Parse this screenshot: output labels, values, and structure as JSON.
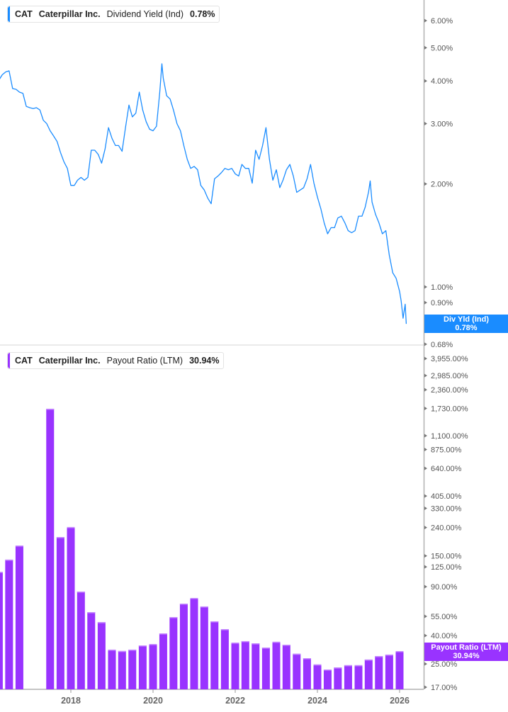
{
  "panels": {
    "top": {
      "ticker": "CAT",
      "company": "Caterpillar Inc.",
      "metric": "Dividend Yield (Ind)",
      "value": "0.78%",
      "tag_label": "Div Yld (Ind)",
      "tag_value": "0.78%",
      "color": "#1a8cff"
    },
    "bottom": {
      "ticker": "CAT",
      "company": "Caterpillar Inc.",
      "metric": "Payout Ratio (LTM)",
      "value": "30.94%",
      "tag_label": "Payout Ratio (LTM)",
      "tag_value": "30.94%",
      "color": "#9933ff"
    }
  },
  "chart_data": [
    {
      "type": "line",
      "series": [
        {
          "name": "Dividend Yield (Ind)"
        }
      ],
      "scale": "log",
      "yticks": [
        "6.00%",
        "5.00%",
        "4.00%",
        "3.00%",
        "2.00%",
        "1.00%",
        "0.90%",
        "0.79%",
        "0.68%"
      ],
      "ytick_values": [
        6,
        5,
        4,
        3,
        2,
        1,
        0.9,
        0.79,
        0.68
      ],
      "ylim": [
        0.67,
        7.0
      ],
      "points": [
        [
          "2016-04-01",
          4.02
        ],
        [
          "2016-05-01",
          4.17
        ],
        [
          "2016-06-01",
          4.25
        ],
        [
          "2016-07-01",
          4.28
        ],
        [
          "2016-08-01",
          3.8
        ],
        [
          "2016-09-01",
          3.78
        ],
        [
          "2016-10-01",
          3.71
        ],
        [
          "2016-11-01",
          3.68
        ],
        [
          "2016-12-01",
          3.37
        ],
        [
          "2017-01-01",
          3.34
        ],
        [
          "2017-02-01",
          3.32
        ],
        [
          "2017-03-01",
          3.34
        ],
        [
          "2017-04-01",
          3.29
        ],
        [
          "2017-05-01",
          3.07
        ],
        [
          "2017-06-01",
          3.0
        ],
        [
          "2017-07-01",
          2.86
        ],
        [
          "2017-08-01",
          2.76
        ],
        [
          "2017-09-01",
          2.66
        ],
        [
          "2017-10-01",
          2.47
        ],
        [
          "2017-11-01",
          2.32
        ],
        [
          "2017-12-01",
          2.22
        ],
        [
          "2018-01-01",
          1.98
        ],
        [
          "2018-02-01",
          1.98
        ],
        [
          "2018-03-01",
          2.05
        ],
        [
          "2018-04-01",
          2.09
        ],
        [
          "2018-05-01",
          2.05
        ],
        [
          "2018-06-01",
          2.09
        ],
        [
          "2018-07-01",
          2.51
        ],
        [
          "2018-08-01",
          2.51
        ],
        [
          "2018-09-01",
          2.44
        ],
        [
          "2018-10-01",
          2.3
        ],
        [
          "2018-11-01",
          2.53
        ],
        [
          "2018-12-01",
          2.92
        ],
        [
          "2019-01-01",
          2.72
        ],
        [
          "2019-02-01",
          2.59
        ],
        [
          "2019-03-01",
          2.59
        ],
        [
          "2019-04-01",
          2.49
        ],
        [
          "2019-05-01",
          2.92
        ],
        [
          "2019-06-01",
          3.4
        ],
        [
          "2019-07-01",
          3.14
        ],
        [
          "2019-08-01",
          3.22
        ],
        [
          "2019-09-01",
          3.71
        ],
        [
          "2019-10-01",
          3.29
        ],
        [
          "2019-11-01",
          3.04
        ],
        [
          "2019-12-01",
          2.89
        ],
        [
          "2020-01-01",
          2.86
        ],
        [
          "2020-02-01",
          2.95
        ],
        [
          "2020-03-01",
          3.71
        ],
        [
          "2020-03-20",
          4.49
        ],
        [
          "2020-04-01",
          4.08
        ],
        [
          "2020-05-01",
          3.62
        ],
        [
          "2020-06-01",
          3.54
        ],
        [
          "2020-07-01",
          3.29
        ],
        [
          "2020-08-01",
          3.0
        ],
        [
          "2020-09-01",
          2.86
        ],
        [
          "2020-10-01",
          2.59
        ],
        [
          "2020-11-01",
          2.36
        ],
        [
          "2020-12-01",
          2.22
        ],
        [
          "2021-01-01",
          2.25
        ],
        [
          "2021-02-01",
          2.2
        ],
        [
          "2021-03-01",
          1.98
        ],
        [
          "2021-04-01",
          1.92
        ],
        [
          "2021-05-01",
          1.82
        ],
        [
          "2021-06-01",
          1.75
        ],
        [
          "2021-07-01",
          2.07
        ],
        [
          "2021-08-01",
          2.11
        ],
        [
          "2021-09-01",
          2.16
        ],
        [
          "2021-10-01",
          2.22
        ],
        [
          "2021-11-01",
          2.2
        ],
        [
          "2021-12-01",
          2.22
        ],
        [
          "2022-01-01",
          2.14
        ],
        [
          "2022-02-01",
          2.11
        ],
        [
          "2022-03-01",
          2.28
        ],
        [
          "2022-04-01",
          2.22
        ],
        [
          "2022-05-01",
          2.22
        ],
        [
          "2022-06-01",
          2.01
        ],
        [
          "2022-07-01",
          2.51
        ],
        [
          "2022-08-01",
          2.36
        ],
        [
          "2022-09-01",
          2.59
        ],
        [
          "2022-10-01",
          2.92
        ],
        [
          "2022-11-01",
          2.36
        ],
        [
          "2022-12-01",
          2.05
        ],
        [
          "2023-01-01",
          2.2
        ],
        [
          "2023-02-01",
          1.95
        ],
        [
          "2023-03-01",
          2.05
        ],
        [
          "2023-04-01",
          2.2
        ],
        [
          "2023-05-01",
          2.28
        ],
        [
          "2023-06-01",
          2.11
        ],
        [
          "2023-07-01",
          1.89
        ],
        [
          "2023-08-01",
          1.92
        ],
        [
          "2023-09-01",
          1.95
        ],
        [
          "2023-10-01",
          2.07
        ],
        [
          "2023-11-01",
          2.28
        ],
        [
          "2023-12-01",
          2.01
        ],
        [
          "2024-01-01",
          1.83
        ],
        [
          "2024-02-01",
          1.69
        ],
        [
          "2024-03-01",
          1.54
        ],
        [
          "2024-04-01",
          1.43
        ],
        [
          "2024-05-01",
          1.49
        ],
        [
          "2024-06-01",
          1.49
        ],
        [
          "2024-07-01",
          1.59
        ],
        [
          "2024-08-01",
          1.61
        ],
        [
          "2024-09-01",
          1.54
        ],
        [
          "2024-10-01",
          1.46
        ],
        [
          "2024-11-01",
          1.44
        ],
        [
          "2024-12-01",
          1.46
        ],
        [
          "2025-01-01",
          1.61
        ],
        [
          "2025-02-01",
          1.61
        ],
        [
          "2025-03-01",
          1.71
        ],
        [
          "2025-04-01",
          1.9
        ],
        [
          "2025-04-15",
          2.04
        ],
        [
          "2025-05-01",
          1.77
        ],
        [
          "2025-06-01",
          1.63
        ],
        [
          "2025-07-01",
          1.54
        ],
        [
          "2025-08-01",
          1.43
        ],
        [
          "2025-09-01",
          1.46
        ],
        [
          "2025-10-01",
          1.24
        ],
        [
          "2025-11-01",
          1.1
        ],
        [
          "2025-12-01",
          1.06
        ],
        [
          "2026-01-01",
          0.97
        ],
        [
          "2026-01-15",
          0.91
        ],
        [
          "2026-02-01",
          0.81
        ],
        [
          "2026-02-20",
          0.89
        ],
        [
          "2026-03-01",
          0.78
        ]
      ]
    },
    {
      "type": "bar",
      "series": [
        {
          "name": "Payout Ratio (LTM)"
        }
      ],
      "scale": "log",
      "yticks": [
        "3,955.00%",
        "2,985.00%",
        "2,360.00%",
        "1,730.00%",
        "1,100.00%",
        "875.00%",
        "640.00%",
        "405.00%",
        "330.00%",
        "240.00%",
        "150.00%",
        "125.00%",
        "90.00%",
        "55.00%",
        "40.00%",
        "25.00%",
        "17.00%"
      ],
      "ytick_values": [
        3955,
        2985,
        2360,
        1730,
        1100,
        875,
        640,
        405,
        330,
        240,
        150,
        125,
        90,
        55,
        40,
        25,
        17
      ],
      "ylim": [
        16.5,
        4500
      ],
      "xticks": [
        "2018",
        "2020",
        "2022",
        "2024",
        "2026"
      ],
      "bars": [
        [
          "2016-03-31",
          115
        ],
        [
          "2016-06-30",
          141
        ],
        [
          "2016-09-30",
          178
        ],
        [
          "2017-06-30",
          1721
        ],
        [
          "2017-09-30",
          205
        ],
        [
          "2017-12-31",
          242
        ],
        [
          "2018-03-31",
          83
        ],
        [
          "2018-06-30",
          59
        ],
        [
          "2018-09-30",
          50
        ],
        [
          "2018-12-31",
          31.7
        ],
        [
          "2019-03-31",
          31
        ],
        [
          "2019-06-30",
          31.7
        ],
        [
          "2019-09-30",
          34
        ],
        [
          "2019-12-31",
          34.8
        ],
        [
          "2020-03-31",
          41.5
        ],
        [
          "2020-06-30",
          54.4
        ],
        [
          "2020-09-30",
          68
        ],
        [
          "2020-12-31",
          74.7
        ],
        [
          "2021-03-31",
          64.9
        ],
        [
          "2021-06-30",
          50.7
        ],
        [
          "2021-09-30",
          44.5
        ],
        [
          "2021-12-31",
          35.6
        ],
        [
          "2022-03-31",
          36.5
        ],
        [
          "2022-06-30",
          35.2
        ],
        [
          "2022-09-30",
          32.8
        ],
        [
          "2022-12-31",
          36.1
        ],
        [
          "2023-03-31",
          34.4
        ],
        [
          "2023-06-30",
          29.6
        ],
        [
          "2023-09-30",
          27.5
        ],
        [
          "2023-12-31",
          24.8
        ],
        [
          "2024-03-31",
          22.8
        ],
        [
          "2024-06-30",
          23.6
        ],
        [
          "2024-09-30",
          24.5
        ],
        [
          "2024-12-31",
          24.5
        ],
        [
          "2025-03-31",
          26.9
        ],
        [
          "2025-06-30",
          28.5
        ],
        [
          "2025-09-30",
          29.2
        ],
        [
          "2025-12-31",
          30.94
        ]
      ]
    }
  ]
}
